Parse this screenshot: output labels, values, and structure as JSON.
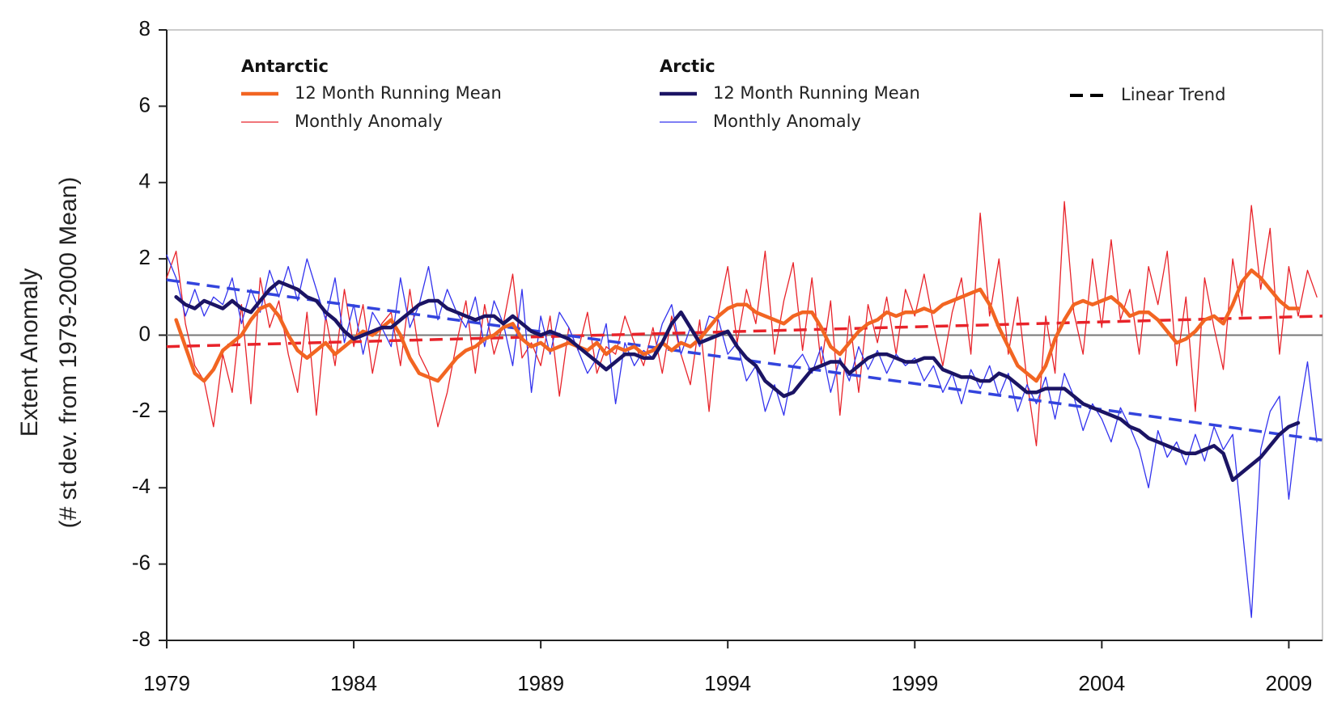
{
  "chart_data": {
    "type": "line",
    "y_label": [
      "Extent Anomaly",
      "(# st dev. from 1979-2000 Mean)"
    ],
    "xlim": [
      1979,
      2009.9
    ],
    "xticks": [
      1979,
      1984,
      1989,
      1994,
      1999,
      2004,
      2009
    ],
    "ylim": [
      -8,
      8
    ],
    "yticks": [
      -8,
      -6,
      -4,
      -2,
      0,
      2,
      4,
      6,
      8
    ],
    "grid": false,
    "x": [
      1979,
      1979.25,
      1979.5,
      1979.75,
      1980,
      1980.25,
      1980.5,
      1980.75,
      1981,
      1981.25,
      1981.5,
      1981.75,
      1982,
      1982.25,
      1982.5,
      1982.75,
      1983,
      1983.25,
      1983.5,
      1983.75,
      1984,
      1984.25,
      1984.5,
      1984.75,
      1985,
      1985.25,
      1985.5,
      1985.75,
      1986,
      1986.25,
      1986.5,
      1986.75,
      1987,
      1987.25,
      1987.5,
      1987.75,
      1988,
      1988.25,
      1988.5,
      1988.75,
      1989,
      1989.25,
      1989.5,
      1989.75,
      1990,
      1990.25,
      1990.5,
      1990.75,
      1991,
      1991.25,
      1991.5,
      1991.75,
      1992,
      1992.25,
      1992.5,
      1992.75,
      1993,
      1993.25,
      1993.5,
      1993.75,
      1994,
      1994.25,
      1994.5,
      1994.75,
      1995,
      1995.25,
      1995.5,
      1995.75,
      1996,
      1996.25,
      1996.5,
      1996.75,
      1997,
      1997.25,
      1997.5,
      1997.75,
      1998,
      1998.25,
      1998.5,
      1998.75,
      1999,
      1999.25,
      1999.5,
      1999.75,
      2000,
      2000.25,
      2000.5,
      2000.75,
      2001,
      2001.25,
      2001.5,
      2001.75,
      2002,
      2002.25,
      2002.5,
      2002.75,
      2003,
      2003.25,
      2003.5,
      2003.75,
      2004,
      2004.25,
      2004.5,
      2004.75,
      2005,
      2005.25,
      2005.5,
      2005.75,
      2006,
      2006.25,
      2006.5,
      2006.75,
      2007,
      2007.25,
      2007.5,
      2007.75,
      2008,
      2008.25,
      2008.5,
      2008.75,
      2009,
      2009.25,
      2009.5,
      2009.75
    ],
    "groups": [
      {
        "name": "Antarctic",
        "series": [
          {
            "name": "12 Month Running Mean",
            "color": "#f26522",
            "linewidth": 4.5,
            "values": [
              null,
              0.4,
              -0.3,
              -1.0,
              -1.2,
              -0.9,
              -0.4,
              -0.2,
              0.0,
              0.4,
              0.7,
              0.8,
              0.5,
              0.0,
              -0.4,
              -0.6,
              -0.4,
              -0.2,
              -0.5,
              -0.3,
              -0.1,
              0.1,
              0.0,
              0.2,
              0.4,
              0.0,
              -0.6,
              -1.0,
              -1.1,
              -1.2,
              -0.9,
              -0.6,
              -0.4,
              -0.3,
              -0.1,
              0.0,
              0.2,
              0.3,
              -0.1,
              -0.3,
              -0.2,
              -0.4,
              -0.3,
              -0.2,
              -0.3,
              -0.4,
              -0.2,
              -0.5,
              -0.3,
              -0.4,
              -0.3,
              -0.5,
              -0.4,
              -0.2,
              -0.4,
              -0.2,
              -0.3,
              -0.1,
              0.2,
              0.5,
              0.7,
              0.8,
              0.8,
              0.6,
              0.5,
              0.4,
              0.3,
              0.5,
              0.6,
              0.6,
              0.2,
              -0.3,
              -0.5,
              -0.2,
              0.1,
              0.3,
              0.4,
              0.6,
              0.5,
              0.6,
              0.6,
              0.7,
              0.6,
              0.8,
              0.9,
              1.0,
              1.1,
              1.2,
              0.8,
              0.2,
              -0.3,
              -0.8,
              -1.0,
              -1.2,
              -0.8,
              -0.1,
              0.4,
              0.8,
              0.9,
              0.8,
              0.9,
              1.0,
              0.8,
              0.5,
              0.6,
              0.6,
              0.4,
              0.1,
              -0.2,
              -0.1,
              0.1,
              0.4,
              0.5,
              0.3,
              0.8,
              1.4,
              1.7,
              1.5,
              1.2,
              0.9,
              0.7,
              0.7,
              null,
              null
            ]
          },
          {
            "name": "Monthly Anomaly",
            "color": "#e8232a",
            "linewidth": 1.3,
            "values": [
              1.5,
              2.2,
              0.3,
              -0.8,
              -1.2,
              -2.4,
              -0.5,
              -1.5,
              0.8,
              -1.8,
              1.5,
              0.2,
              0.9,
              -0.5,
              -1.5,
              0.6,
              -2.1,
              0.5,
              -0.8,
              1.2,
              -0.3,
              0.8,
              -1.0,
              0.3,
              0.6,
              -0.8,
              1.2,
              -0.5,
              -1.0,
              -2.4,
              -1.5,
              -0.2,
              0.9,
              -1.0,
              0.8,
              -0.5,
              0.3,
              1.6,
              -0.6,
              -0.2,
              -0.8,
              0.5,
              -1.6,
              0.2,
              -0.4,
              0.6,
              -1.0,
              -0.3,
              -0.5,
              0.5,
              -0.2,
              -0.8,
              0.2,
              -1.0,
              0.5,
              -0.5,
              -1.3,
              0.4,
              -2.0,
              0.6,
              1.8,
              -0.2,
              1.2,
              0.3,
              2.2,
              -0.5,
              0.9,
              1.9,
              -0.4,
              1.5,
              -0.8,
              0.9,
              -2.1,
              0.5,
              -1.5,
              0.8,
              -0.2,
              1.0,
              -0.5,
              1.2,
              0.5,
              1.6,
              0.3,
              -0.8,
              0.6,
              1.5,
              -0.5,
              3.2,
              0.5,
              2.0,
              -0.5,
              1.0,
              -1.2,
              -2.9,
              0.5,
              -1.0,
              3.5,
              0.6,
              -0.5,
              2.0,
              0.2,
              2.5,
              0.4,
              1.2,
              -0.5,
              1.8,
              0.8,
              2.2,
              -0.8,
              1.0,
              -2.0,
              1.5,
              0.2,
              -0.9,
              2.0,
              0.5,
              3.4,
              1.2,
              2.8,
              -0.5,
              1.8,
              0.5,
              1.7,
              1.0
            ]
          }
        ]
      },
      {
        "name": "Arctic",
        "series": [
          {
            "name": "12 Month Running Mean",
            "color": "#1b1464",
            "linewidth": 4.5,
            "values": [
              null,
              1.0,
              0.8,
              0.7,
              0.9,
              0.8,
              0.7,
              0.9,
              0.7,
              0.6,
              0.9,
              1.2,
              1.4,
              1.3,
              1.2,
              1.0,
              0.9,
              0.6,
              0.4,
              0.1,
              -0.1,
              0.0,
              0.1,
              0.2,
              0.2,
              0.4,
              0.6,
              0.8,
              0.9,
              0.9,
              0.7,
              0.6,
              0.5,
              0.4,
              0.5,
              0.5,
              0.3,
              0.5,
              0.3,
              0.1,
              0.0,
              0.1,
              0.0,
              -0.1,
              -0.3,
              -0.5,
              -0.7,
              -0.9,
              -0.7,
              -0.5,
              -0.5,
              -0.6,
              -0.6,
              -0.2,
              0.3,
              0.6,
              0.2,
              -0.2,
              -0.1,
              0.0,
              0.1,
              -0.3,
              -0.6,
              -0.8,
              -1.2,
              -1.4,
              -1.6,
              -1.5,
              -1.2,
              -0.9,
              -0.8,
              -0.7,
              -0.7,
              -1.0,
              -0.8,
              -0.6,
              -0.5,
              -0.5,
              -0.6,
              -0.7,
              -0.7,
              -0.6,
              -0.6,
              -0.9,
              -1.0,
              -1.1,
              -1.1,
              -1.2,
              -1.2,
              -1.0,
              -1.1,
              -1.3,
              -1.5,
              -1.5,
              -1.4,
              -1.4,
              -1.4,
              -1.6,
              -1.8,
              -1.9,
              -2.0,
              -2.1,
              -2.2,
              -2.4,
              -2.5,
              -2.7,
              -2.8,
              -2.9,
              -3.0,
              -3.1,
              -3.1,
              -3.0,
              -2.9,
              -3.1,
              -3.8,
              -3.6,
              -3.4,
              -3.2,
              -2.9,
              -2.6,
              -2.4,
              -2.3,
              null,
              null
            ]
          },
          {
            "name": "Monthly Anomaly",
            "color": "#3333ee",
            "linewidth": 1.3,
            "values": [
              2.1,
              1.5,
              0.5,
              1.2,
              0.5,
              1.0,
              0.8,
              1.5,
              0.3,
              1.2,
              0.6,
              1.7,
              1.0,
              1.8,
              0.9,
              2.0,
              1.2,
              0.4,
              1.5,
              -0.2,
              0.8,
              -0.5,
              0.6,
              0.2,
              -0.3,
              1.5,
              0.2,
              0.8,
              1.8,
              0.4,
              1.2,
              0.6,
              0.2,
              1.0,
              -0.3,
              0.9,
              0.3,
              -0.8,
              1.2,
              -1.5,
              0.5,
              -0.5,
              0.6,
              0.2,
              -0.4,
              -1.0,
              -0.6,
              0.3,
              -1.8,
              -0.2,
              -0.8,
              -0.4,
              -0.6,
              0.3,
              0.8,
              -0.5,
              0.2,
              -0.3,
              0.5,
              0.4,
              -0.5,
              -0.2,
              -1.2,
              -0.8,
              -2.0,
              -1.3,
              -2.1,
              -0.8,
              -0.5,
              -1.0,
              -0.3,
              -1.5,
              -0.6,
              -1.2,
              -0.3,
              -0.9,
              -0.4,
              -1.0,
              -0.5,
              -0.8,
              -0.6,
              -1.2,
              -0.8,
              -1.5,
              -1.0,
              -1.8,
              -0.9,
              -1.4,
              -0.8,
              -1.6,
              -1.0,
              -2.0,
              -1.3,
              -1.8,
              -1.1,
              -2.2,
              -1.0,
              -1.6,
              -2.5,
              -1.8,
              -2.2,
              -2.8,
              -1.9,
              -2.4,
              -3.0,
              -4.0,
              -2.5,
              -3.2,
              -2.8,
              -3.4,
              -2.6,
              -3.3,
              -2.4,
              -3.0,
              -2.6,
              -5.0,
              -7.4,
              -3.0,
              -2.0,
              -1.6,
              -4.3,
              -2.2,
              -0.7,
              -2.8
            ]
          }
        ]
      }
    ],
    "trend": {
      "name": "Linear Trend",
      "color": "#000000",
      "lines": [
        {
          "color": "#e8232a",
          "x": [
            1979,
            2009.9
          ],
          "values": [
            -0.3,
            0.5
          ]
        },
        {
          "color": "#3344dd",
          "x": [
            1979,
            2009.9
          ],
          "values": [
            1.45,
            -2.75
          ]
        }
      ]
    }
  }
}
